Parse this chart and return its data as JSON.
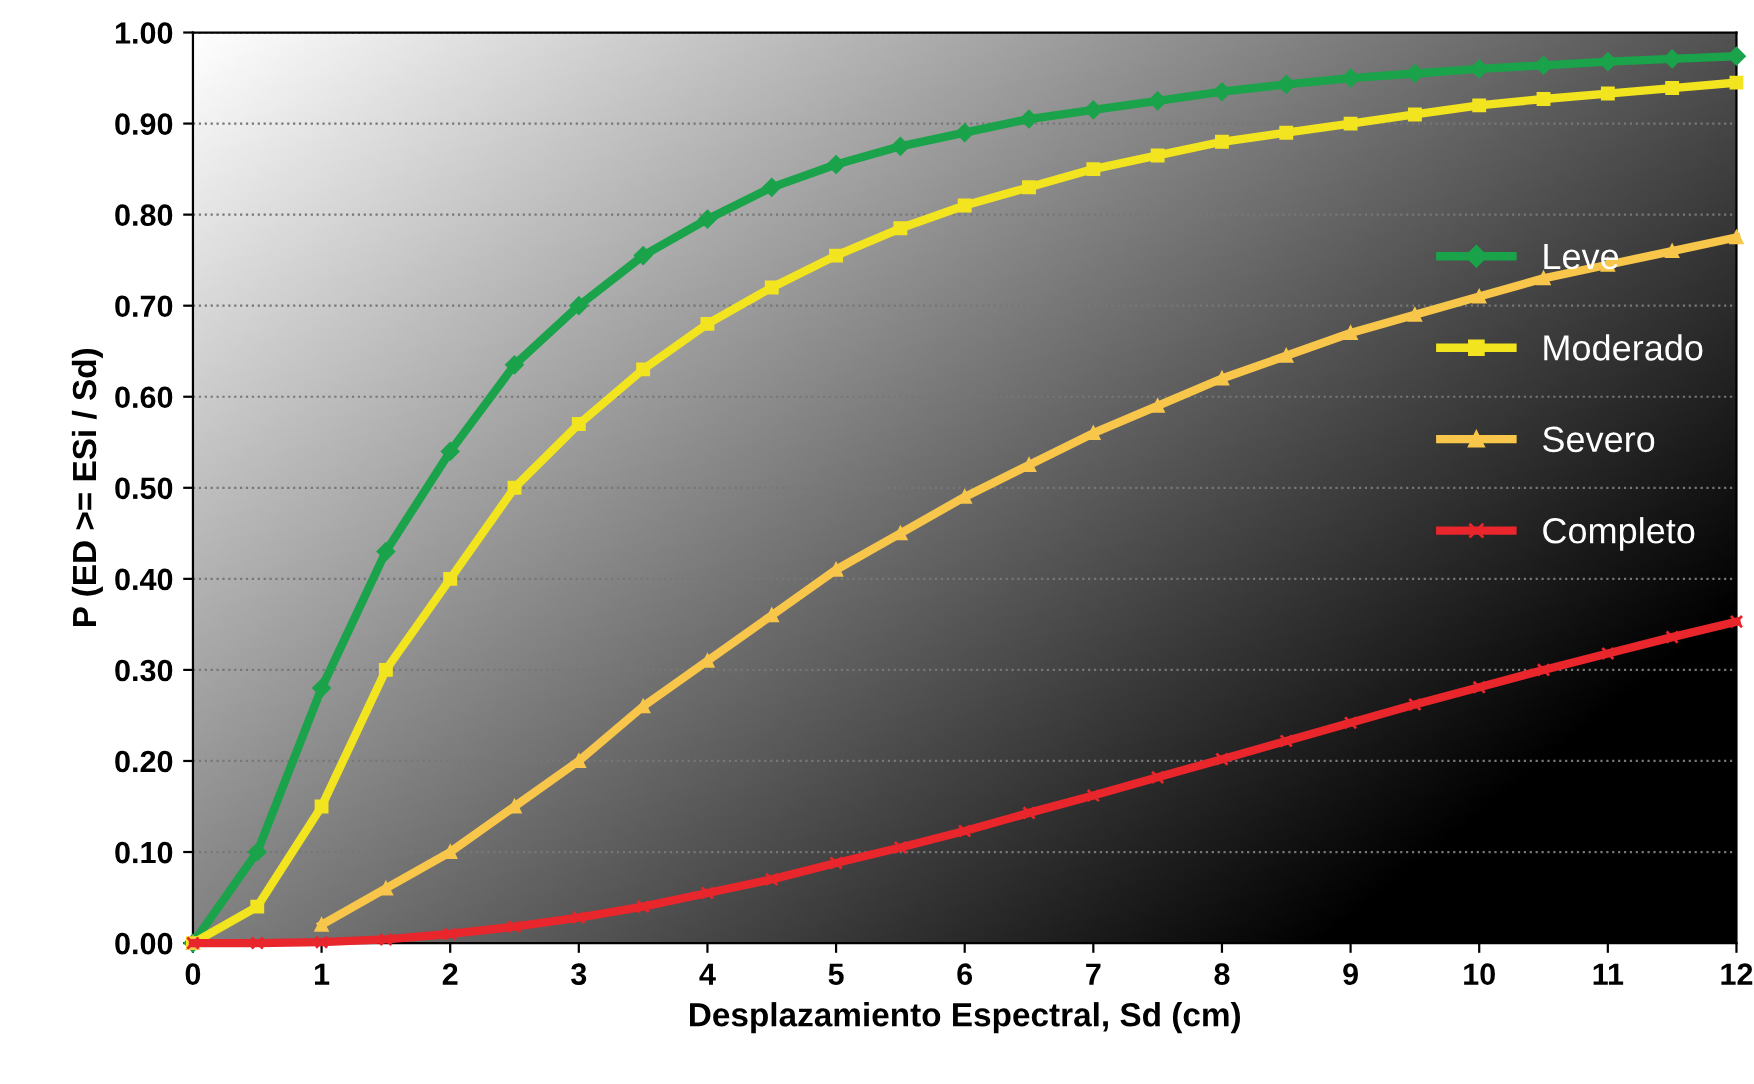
{
  "chart_data": {
    "type": "line",
    "xlabel": "Desplazamiento Espectral, Sd (cm)",
    "ylabel": "P (ED >= ESi / Sd)",
    "x": [
      0,
      0.5,
      1,
      1.5,
      2,
      2.5,
      3,
      3.5,
      4,
      4.5,
      5,
      5.5,
      6,
      6.5,
      7,
      7.5,
      8,
      8.5,
      9,
      9.5,
      10,
      10.5,
      11,
      11.5,
      12
    ],
    "series": [
      {
        "name": "Leve",
        "color": "#1aa34a",
        "marker": "diamond",
        "values": [
          0,
          0.1,
          0.28,
          0.43,
          0.54,
          0.635,
          0.7,
          0.755,
          0.795,
          0.83,
          0.855,
          0.875,
          0.89,
          0.905,
          0.915,
          0.925,
          0.935,
          0.943,
          0.95,
          0.955,
          0.96,
          0.964,
          0.968,
          0.971,
          0.974
        ]
      },
      {
        "name": "Moderado",
        "color": "#f2e41f",
        "marker": "square",
        "values": [
          0,
          0.04,
          0.15,
          0.3,
          0.4,
          0.5,
          0.57,
          0.63,
          0.68,
          0.72,
          0.755,
          0.785,
          0.81,
          0.83,
          0.85,
          0.865,
          0.88,
          0.89,
          0.9,
          0.91,
          0.92,
          0.927,
          0.933,
          0.939,
          0.945
        ]
      },
      {
        "name": "Severo",
        "color": "#f7c64a",
        "marker": "triangle",
        "values": [
          0,
          null,
          0.02,
          0.06,
          0.1,
          0.15,
          0.2,
          0.26,
          0.31,
          0.36,
          0.41,
          0.45,
          0.49,
          0.525,
          0.56,
          0.59,
          0.62,
          0.645,
          0.67,
          0.69,
          0.71,
          0.73,
          0.745,
          0.76,
          0.775
        ]
      },
      {
        "name": "Completo",
        "color": "#e8262c",
        "marker": "cross",
        "values": [
          0,
          0,
          0.001,
          0.004,
          0.01,
          0.018,
          0.028,
          0.04,
          0.055,
          0.07,
          0.088,
          0.105,
          0.123,
          0.143,
          0.162,
          0.182,
          0.202,
          0.222,
          0.242,
          0.262,
          0.281,
          0.3,
          0.318,
          0.336,
          0.353
        ]
      }
    ],
    "xlim": [
      0,
      12
    ],
    "xticks": [
      0,
      1,
      2,
      3,
      4,
      5,
      6,
      7,
      8,
      9,
      10,
      11,
      12
    ],
    "ylim": [
      0,
      1
    ],
    "yticks": [
      {
        "value": 0,
        "label": "0.00"
      },
      {
        "value": 0.1,
        "label": "0.10"
      },
      {
        "value": 0.2,
        "label": "0.20"
      },
      {
        "value": 0.3,
        "label": "0.30"
      },
      {
        "value": 0.4,
        "label": "0.40"
      },
      {
        "value": 0.5,
        "label": "0.50"
      },
      {
        "value": 0.6,
        "label": "0.60"
      },
      {
        "value": 0.7,
        "label": "0.70"
      },
      {
        "value": 0.8,
        "label": "0.80"
      },
      {
        "value": 0.9,
        "label": "0.90"
      },
      {
        "value": 1,
        "label": "1.00"
      }
    ],
    "grid": "y",
    "line_style": "solid",
    "legend": "right"
  }
}
